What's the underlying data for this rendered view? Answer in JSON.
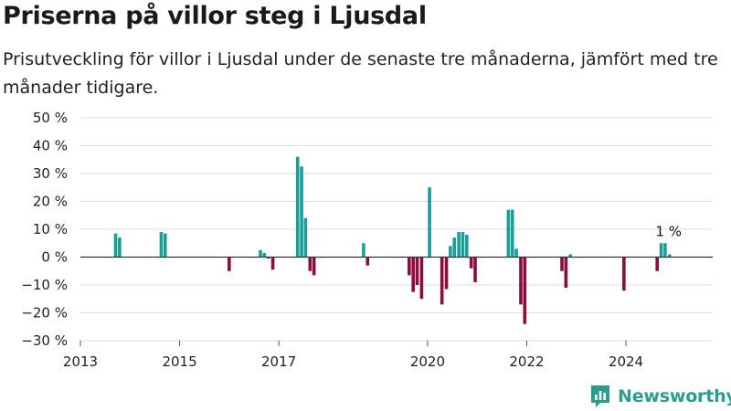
{
  "header": {
    "title": "Priserna på villor steg i Ljusdal",
    "subtitle": "Prisutveckling för villor i Ljusdal under de senaste tre månaderna, jämfört med tre månader tidigare."
  },
  "branding": {
    "name": "Newsworthy",
    "icon": "newsworthy-logo-icon"
  },
  "colors": {
    "positive": "#1a9e97",
    "negative": "#8b0d3c",
    "grid": "#dddddd",
    "zero_line": "#333333"
  },
  "chart_data": {
    "type": "bar",
    "xlim": [
      2013,
      2025.75
    ],
    "ylim": [
      -30,
      50
    ],
    "y_ticks": [
      50,
      40,
      30,
      20,
      10,
      0,
      -10,
      -20,
      -30
    ],
    "y_tick_labels": [
      "50 %",
      "40 %",
      "30 %",
      "20 %",
      "10 %",
      "0 %",
      "−10 %",
      "−20 %",
      "−30 %"
    ],
    "x_ticks": [
      2013,
      2015,
      2017,
      2020,
      2022,
      2024
    ],
    "x_tick_labels": [
      "2013",
      "2015",
      "2017",
      "2020",
      "2022",
      "2024"
    ],
    "grid": true,
    "values": [
      {
        "x": 2013.71,
        "y": 8.5
      },
      {
        "x": 2013.79,
        "y": 7
      },
      {
        "x": 2014.63,
        "y": 9
      },
      {
        "x": 2014.71,
        "y": 8.5
      },
      {
        "x": 2016.0,
        "y": -5
      },
      {
        "x": 2016.63,
        "y": 2.5
      },
      {
        "x": 2016.71,
        "y": 1.5
      },
      {
        "x": 2016.79,
        "y": -0.5
      },
      {
        "x": 2016.88,
        "y": -4.5
      },
      {
        "x": 2017.38,
        "y": 36
      },
      {
        "x": 2017.46,
        "y": 32.5
      },
      {
        "x": 2017.54,
        "y": 14
      },
      {
        "x": 2017.63,
        "y": -5
      },
      {
        "x": 2017.71,
        "y": -6.5
      },
      {
        "x": 2018.71,
        "y": 5
      },
      {
        "x": 2018.79,
        "y": -3
      },
      {
        "x": 2019.63,
        "y": -6.5
      },
      {
        "x": 2019.71,
        "y": -12.5
      },
      {
        "x": 2019.79,
        "y": -10
      },
      {
        "x": 2019.88,
        "y": -15
      },
      {
        "x": 2020.04,
        "y": 25
      },
      {
        "x": 2020.29,
        "y": -17
      },
      {
        "x": 2020.38,
        "y": -11.5
      },
      {
        "x": 2020.46,
        "y": 4
      },
      {
        "x": 2020.54,
        "y": 7
      },
      {
        "x": 2020.63,
        "y": 9
      },
      {
        "x": 2020.71,
        "y": 9
      },
      {
        "x": 2020.79,
        "y": 8
      },
      {
        "x": 2020.88,
        "y": -4
      },
      {
        "x": 2020.96,
        "y": -9
      },
      {
        "x": 2021.63,
        "y": 17
      },
      {
        "x": 2021.71,
        "y": 17
      },
      {
        "x": 2021.79,
        "y": 3
      },
      {
        "x": 2021.88,
        "y": -17
      },
      {
        "x": 2021.96,
        "y": -24
      },
      {
        "x": 2022.71,
        "y": -5
      },
      {
        "x": 2022.79,
        "y": -11
      },
      {
        "x": 2022.88,
        "y": 1
      },
      {
        "x": 2023.96,
        "y": -12
      },
      {
        "x": 2024.63,
        "y": -5
      },
      {
        "x": 2024.71,
        "y": 5
      },
      {
        "x": 2024.79,
        "y": 5
      },
      {
        "x": 2024.88,
        "y": 1
      }
    ],
    "annotation": {
      "x": 2024.88,
      "y": 1,
      "label": "1 %"
    }
  }
}
